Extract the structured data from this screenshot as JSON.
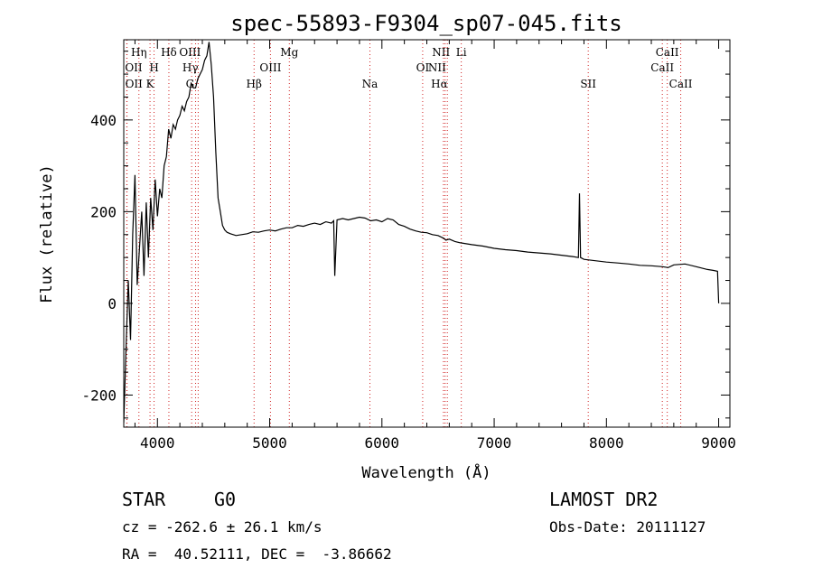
{
  "chart_data": {
    "type": "line",
    "title": "spec-55893-F9304_sp07-045.fits",
    "xlabel": "Wavelength (Å)",
    "ylabel": "Flux (relative)",
    "xlim": [
      3700,
      9100
    ],
    "ylim": [
      -270,
      575
    ],
    "x_ticks": [
      4000,
      5000,
      6000,
      7000,
      8000,
      9000
    ],
    "y_ticks": [
      -200,
      0,
      200,
      400
    ],
    "grid": false,
    "line_color": "#000000",
    "marker_line_color": "#d02020",
    "series": [
      {
        "x": [
          3700,
          3720,
          3740,
          3760,
          3780,
          3800,
          3820,
          3840,
          3860,
          3880,
          3900,
          3920,
          3940,
          3960,
          3980,
          4000,
          4020,
          4040,
          4060,
          4080,
          4100,
          4120,
          4140,
          4160,
          4180,
          4200,
          4220,
          4240,
          4260,
          4280,
          4300,
          4320,
          4340,
          4360,
          4380,
          4400,
          4420,
          4440,
          4460,
          4480,
          4500,
          4520,
          4540,
          4560,
          4580,
          4600,
          4620,
          4650,
          4700,
          4750,
          4800,
          4850,
          4900,
          4950,
          5000,
          5050,
          5100,
          5150,
          5200,
          5250,
          5300,
          5350,
          5400,
          5450,
          5500,
          5550,
          5570,
          5580,
          5600,
          5650,
          5700,
          5750,
          5800,
          5850,
          5900,
          5950,
          6000,
          6050,
          6100,
          6150,
          6200,
          6250,
          6300,
          6350,
          6400,
          6450,
          6500,
          6550,
          6570,
          6600,
          6650,
          6700,
          6800,
          6900,
          7000,
          7100,
          7200,
          7300,
          7400,
          7500,
          7600,
          7700,
          7750,
          7760,
          7770,
          7800,
          7900,
          8000,
          8100,
          8200,
          8300,
          8400,
          8500,
          8550,
          8600,
          8700,
          8800,
          8900,
          8950,
          8990,
          9000
        ],
        "y": [
          -260,
          -100,
          50,
          -80,
          150,
          280,
          40,
          120,
          200,
          60,
          220,
          100,
          230,
          160,
          270,
          190,
          250,
          230,
          300,
          320,
          380,
          360,
          390,
          380,
          400,
          410,
          430,
          420,
          440,
          450,
          480,
          470,
          470,
          490,
          500,
          510,
          530,
          540,
          570,
          520,
          450,
          330,
          230,
          200,
          170,
          160,
          155,
          152,
          148,
          150,
          152,
          156,
          155,
          158,
          160,
          158,
          162,
          165,
          165,
          170,
          168,
          172,
          175,
          172,
          178,
          175,
          180,
          60,
          182,
          185,
          182,
          185,
          188,
          186,
          180,
          182,
          178,
          185,
          182,
          172,
          168,
          162,
          158,
          155,
          154,
          150,
          148,
          142,
          138,
          140,
          135,
          132,
          128,
          125,
          120,
          117,
          115,
          112,
          110,
          108,
          105,
          102,
          100,
          240,
          100,
          96,
          93,
          90,
          88,
          86,
          83,
          82,
          80,
          78,
          84,
          86,
          80,
          74,
          72,
          70,
          0
        ]
      }
    ],
    "line_markers": [
      {
        "label": "Hη",
        "x": 3835,
        "row": 1,
        "align": "center"
      },
      {
        "label": "OII",
        "x": 3727,
        "row": 2,
        "align": "left"
      },
      {
        "label": "H",
        "x": 3970,
        "row": 2,
        "align": "center"
      },
      {
        "label": "OII",
        "x": 3729,
        "row": 3,
        "align": "left"
      },
      {
        "label": "K",
        "x": 3934,
        "row": 3,
        "align": "center"
      },
      {
        "label": "Hδ",
        "x": 4102,
        "row": 1,
        "align": "center"
      },
      {
        "label": "OIII",
        "x": 4363,
        "row": 1,
        "align": "right"
      },
      {
        "label": "Hγ",
        "x": 4340,
        "row": 2,
        "align": "right"
      },
      {
        "label": "G",
        "x": 4305,
        "row": 3,
        "align": "right"
      },
      {
        "label": "Mg",
        "x": 5175,
        "row": 1,
        "align": "center"
      },
      {
        "label": "OIII",
        "x": 5007,
        "row": 2,
        "align": "center"
      },
      {
        "label": "Hβ",
        "x": 4861,
        "row": 3,
        "align": "center"
      },
      {
        "label": "Na",
        "x": 5893,
        "row": 3,
        "align": "center"
      },
      {
        "label": "NII",
        "x": 6583,
        "row": 1,
        "align": "right"
      },
      {
        "label": "Li",
        "x": 6707,
        "row": 1,
        "align": "center"
      },
      {
        "label": "OI",
        "x": 6363,
        "row": 2,
        "align": "center"
      },
      {
        "label": "NII",
        "x": 6548,
        "row": 2,
        "align": "right"
      },
      {
        "label": "Hα",
        "x": 6563,
        "row": 3,
        "align": "right"
      },
      {
        "label": "SII",
        "x": 7838,
        "row": 3,
        "align": "center"
      },
      {
        "label": "CaII",
        "x": 8542,
        "row": 1,
        "align": "center"
      },
      {
        "label": "CaII",
        "x": 8498,
        "row": 2,
        "align": "center"
      },
      {
        "label": "CaII",
        "x": 8662,
        "row": 3,
        "align": "center"
      }
    ]
  },
  "info": {
    "object_class": "STAR",
    "subclass": "G0",
    "survey": "LAMOST DR2",
    "redshift": "cz = -262.6 ± 26.1 km/s",
    "obs_date": "Obs-Date: 20111127",
    "coords": "RA =  40.52111, DEC =  -3.86662"
  }
}
